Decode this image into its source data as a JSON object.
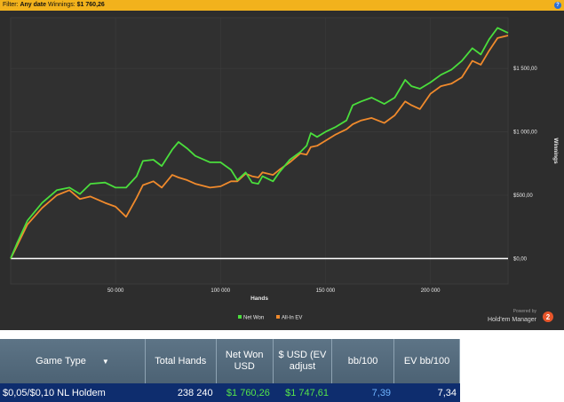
{
  "filter": {
    "label": "Filter:",
    "date": "Any date",
    "winnings_label": "Winnings:",
    "winnings_value": "$1 760,26",
    "help_glyph": "?"
  },
  "colors": {
    "filter_bar": "#f2b21c",
    "chart_bg": "#2d2d2d",
    "net_won": "#4ade3c",
    "all_in_ev": "#f08a2c",
    "zero_line": "#ffffff",
    "table_header": "#566c7e",
    "table_row": "#0e2d6e"
  },
  "chart_data": {
    "type": "line",
    "xlabel": "Hands",
    "ylabel": "Winnings",
    "xlim": [
      0,
      237000
    ],
    "ylim": [
      -200,
      1900
    ],
    "x_ticks": [
      50000,
      100000,
      150000,
      200000
    ],
    "x_tick_labels": [
      "50 000",
      "100 000",
      "150 000",
      "200 000"
    ],
    "y_ticks": [
      0,
      500,
      1000,
      1500
    ],
    "y_tick_labels": [
      "$0,00",
      "$500,00",
      "$1 000,00",
      "$1 500,00"
    ],
    "legend_position": "bottom-center",
    "zero_line": true,
    "series": [
      {
        "name": "Net Won",
        "color": "#4ade3c",
        "points": [
          [
            0,
            0
          ],
          [
            3000,
            120
          ],
          [
            8000,
            300
          ],
          [
            15000,
            440
          ],
          [
            22000,
            540
          ],
          [
            28000,
            560
          ],
          [
            33000,
            510
          ],
          [
            38000,
            590
          ],
          [
            45000,
            600
          ],
          [
            50000,
            560
          ],
          [
            55000,
            560
          ],
          [
            60000,
            650
          ],
          [
            63000,
            770
          ],
          [
            68000,
            780
          ],
          [
            72000,
            730
          ],
          [
            77000,
            860
          ],
          [
            80000,
            920
          ],
          [
            84000,
            870
          ],
          [
            88000,
            810
          ],
          [
            95000,
            760
          ],
          [
            100000,
            760
          ],
          [
            105000,
            700
          ],
          [
            108000,
            620
          ],
          [
            112000,
            680
          ],
          [
            115000,
            600
          ],
          [
            118000,
            590
          ],
          [
            120000,
            650
          ],
          [
            125000,
            610
          ],
          [
            128000,
            680
          ],
          [
            133000,
            780
          ],
          [
            138000,
            840
          ],
          [
            141000,
            890
          ],
          [
            143000,
            990
          ],
          [
            146000,
            960
          ],
          [
            150000,
            1000
          ],
          [
            155000,
            1040
          ],
          [
            160000,
            1090
          ],
          [
            163000,
            1210
          ],
          [
            167000,
            1240
          ],
          [
            172000,
            1270
          ],
          [
            178000,
            1220
          ],
          [
            183000,
            1270
          ],
          [
            188000,
            1410
          ],
          [
            191000,
            1360
          ],
          [
            195000,
            1340
          ],
          [
            200000,
            1390
          ],
          [
            205000,
            1450
          ],
          [
            210000,
            1490
          ],
          [
            215000,
            1560
          ],
          [
            220000,
            1660
          ],
          [
            224000,
            1610
          ],
          [
            228000,
            1730
          ],
          [
            232000,
            1820
          ],
          [
            237000,
            1780
          ]
        ]
      },
      {
        "name": "All-In EV",
        "color": "#f08a2c",
        "points": [
          [
            0,
            0
          ],
          [
            3000,
            100
          ],
          [
            8000,
            270
          ],
          [
            15000,
            400
          ],
          [
            22000,
            500
          ],
          [
            28000,
            540
          ],
          [
            33000,
            470
          ],
          [
            38000,
            490
          ],
          [
            45000,
            440
          ],
          [
            50000,
            410
          ],
          [
            55000,
            330
          ],
          [
            60000,
            480
          ],
          [
            63000,
            580
          ],
          [
            68000,
            610
          ],
          [
            72000,
            560
          ],
          [
            77000,
            660
          ],
          [
            80000,
            640
          ],
          [
            84000,
            620
          ],
          [
            88000,
            590
          ],
          [
            95000,
            560
          ],
          [
            100000,
            570
          ],
          [
            105000,
            610
          ],
          [
            108000,
            610
          ],
          [
            112000,
            670
          ],
          [
            115000,
            650
          ],
          [
            118000,
            640
          ],
          [
            120000,
            680
          ],
          [
            125000,
            660
          ],
          [
            128000,
            700
          ],
          [
            133000,
            760
          ],
          [
            138000,
            830
          ],
          [
            141000,
            820
          ],
          [
            143000,
            880
          ],
          [
            146000,
            890
          ],
          [
            150000,
            930
          ],
          [
            155000,
            980
          ],
          [
            160000,
            1020
          ],
          [
            163000,
            1060
          ],
          [
            167000,
            1090
          ],
          [
            172000,
            1110
          ],
          [
            178000,
            1070
          ],
          [
            183000,
            1130
          ],
          [
            188000,
            1240
          ],
          [
            191000,
            1210
          ],
          [
            195000,
            1180
          ],
          [
            200000,
            1300
          ],
          [
            205000,
            1360
          ],
          [
            210000,
            1380
          ],
          [
            215000,
            1430
          ],
          [
            220000,
            1560
          ],
          [
            224000,
            1530
          ],
          [
            228000,
            1640
          ],
          [
            232000,
            1740
          ],
          [
            237000,
            1760
          ]
        ]
      }
    ]
  },
  "brand": {
    "powered_by": "Powered by",
    "name": "Hold'em Manager",
    "badge": "2"
  },
  "table": {
    "headers": [
      "Game Type",
      "Total Hands",
      "Net Won USD",
      "$ USD (EV adjust",
      "bb/100",
      "EV bb/100"
    ],
    "sort_glyph": "▼",
    "rows": [
      [
        "$0,05/$0,10 NL Holdem",
        "238 240",
        "$1 760,26",
        "$1 747,61",
        "7,39",
        "7,34"
      ]
    ]
  }
}
